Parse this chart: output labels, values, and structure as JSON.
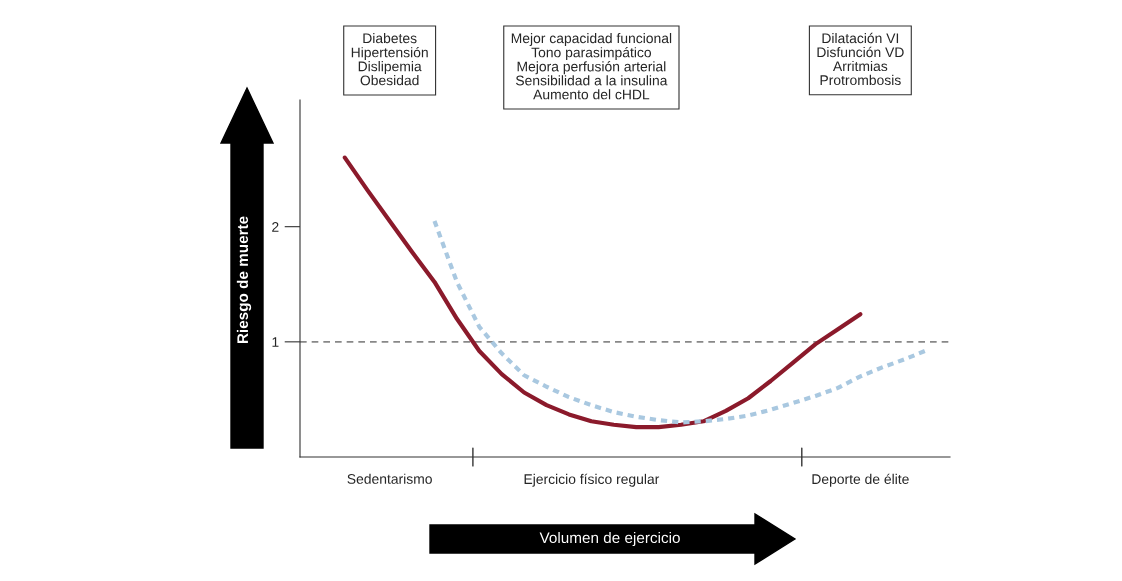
{
  "chart_data": {
    "type": "line",
    "xlabel": "Volumen de ejercicio",
    "ylabel": "Riesgo de muerte",
    "annotations": [
      "Diabetes\nHipertensión\nDislipemia\nObesidad",
      "Mejor capacidad funcional\nTono parasimpático\nMejora perfusión arterial\nSensibilidad a la insulina\nAumento del cHDL",
      "Dilatación VI\nDisfunción VD\nArritmias\nProtrombosis"
    ],
    "categories": [
      null,
      null,
      null,
      null,
      "Sedentarismo",
      null,
      null,
      null,
      null,
      null,
      null,
      null,
      null,
      "Ejercicio físico regular",
      null,
      null,
      null,
      null,
      null,
      null,
      null,
      null,
      null,
      null,
      null,
      "Deporte de élite",
      null,
      null,
      null,
      null
    ],
    "ylim": [
      0,
      3.1
    ],
    "yticks": [
      1,
      2
    ],
    "ref_lines": [
      {
        "axis": "y",
        "value": 1,
        "color": "#888888",
        "line_style": "dashed"
      }
    ],
    "marker": "none",
    "series": [
      {
        "color": "#8b1a2b",
        "line_style": "solid",
        "values": [
          null,
          null,
          2.6,
          2.32,
          2.05,
          1.78,
          1.52,
          1.2,
          0.92,
          0.72,
          0.56,
          0.45,
          0.37,
          0.31,
          0.28,
          0.26,
          0.26,
          0.28,
          0.31,
          0.4,
          0.51,
          0.66,
          0.82,
          0.98,
          1.11,
          1.24,
          null,
          null,
          null,
          null
        ]
      },
      {
        "color": "#a9c8e0",
        "line_style": "dashed",
        "values": [
          null,
          null,
          null,
          null,
          null,
          null,
          2.05,
          1.52,
          1.13,
          0.9,
          0.71,
          0.61,
          0.52,
          0.45,
          0.39,
          0.35,
          0.32,
          0.3,
          0.31,
          0.33,
          0.36,
          0.41,
          0.47,
          0.53,
          0.6,
          0.7,
          0.78,
          0.85,
          0.93,
          null
        ]
      }
    ]
  }
}
